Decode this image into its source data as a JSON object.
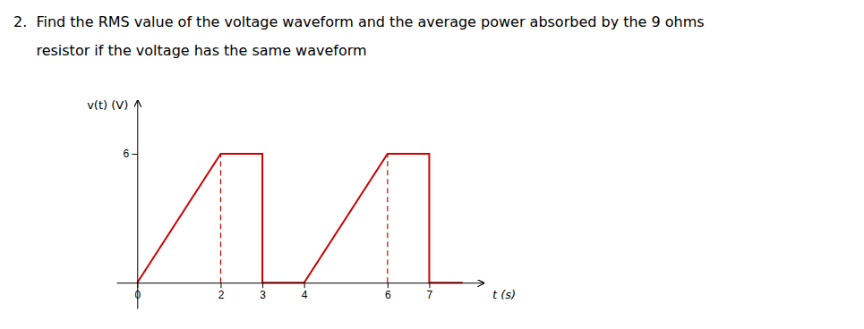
{
  "chart_data": {
    "type": "line",
    "title": "2.  Find the RMS value of the voltage waveform and the average power absorbed by the 9 ohms",
    "subtitle": "     resistor if the voltage has the same waveform",
    "x_label": "t (s)",
    "y_label": "v(t) (V)",
    "series": [
      {
        "x": [
          0,
          2,
          3,
          3,
          4,
          6,
          7,
          7,
          7.8
        ],
        "values": [
          0,
          6,
          6,
          0,
          0,
          6,
          6,
          0,
          0
        ],
        "color": "#cc0000",
        "line_style": "solid"
      },
      {
        "x": [
          2,
          2
        ],
        "values": [
          0,
          6
        ],
        "color": "#cc0000",
        "line_style": "dashed"
      },
      {
        "x": [
          6,
          6
        ],
        "values": [
          0,
          6
        ],
        "color": "#cc0000",
        "line_style": "dashed"
      }
    ],
    "xlim": [
      -0.5,
      8.3
    ],
    "ylim": [
      -1.2,
      8.5
    ],
    "xticks": [
      0,
      2,
      3,
      4,
      6,
      7
    ],
    "yticks": [
      6
    ],
    "grid": false
  }
}
